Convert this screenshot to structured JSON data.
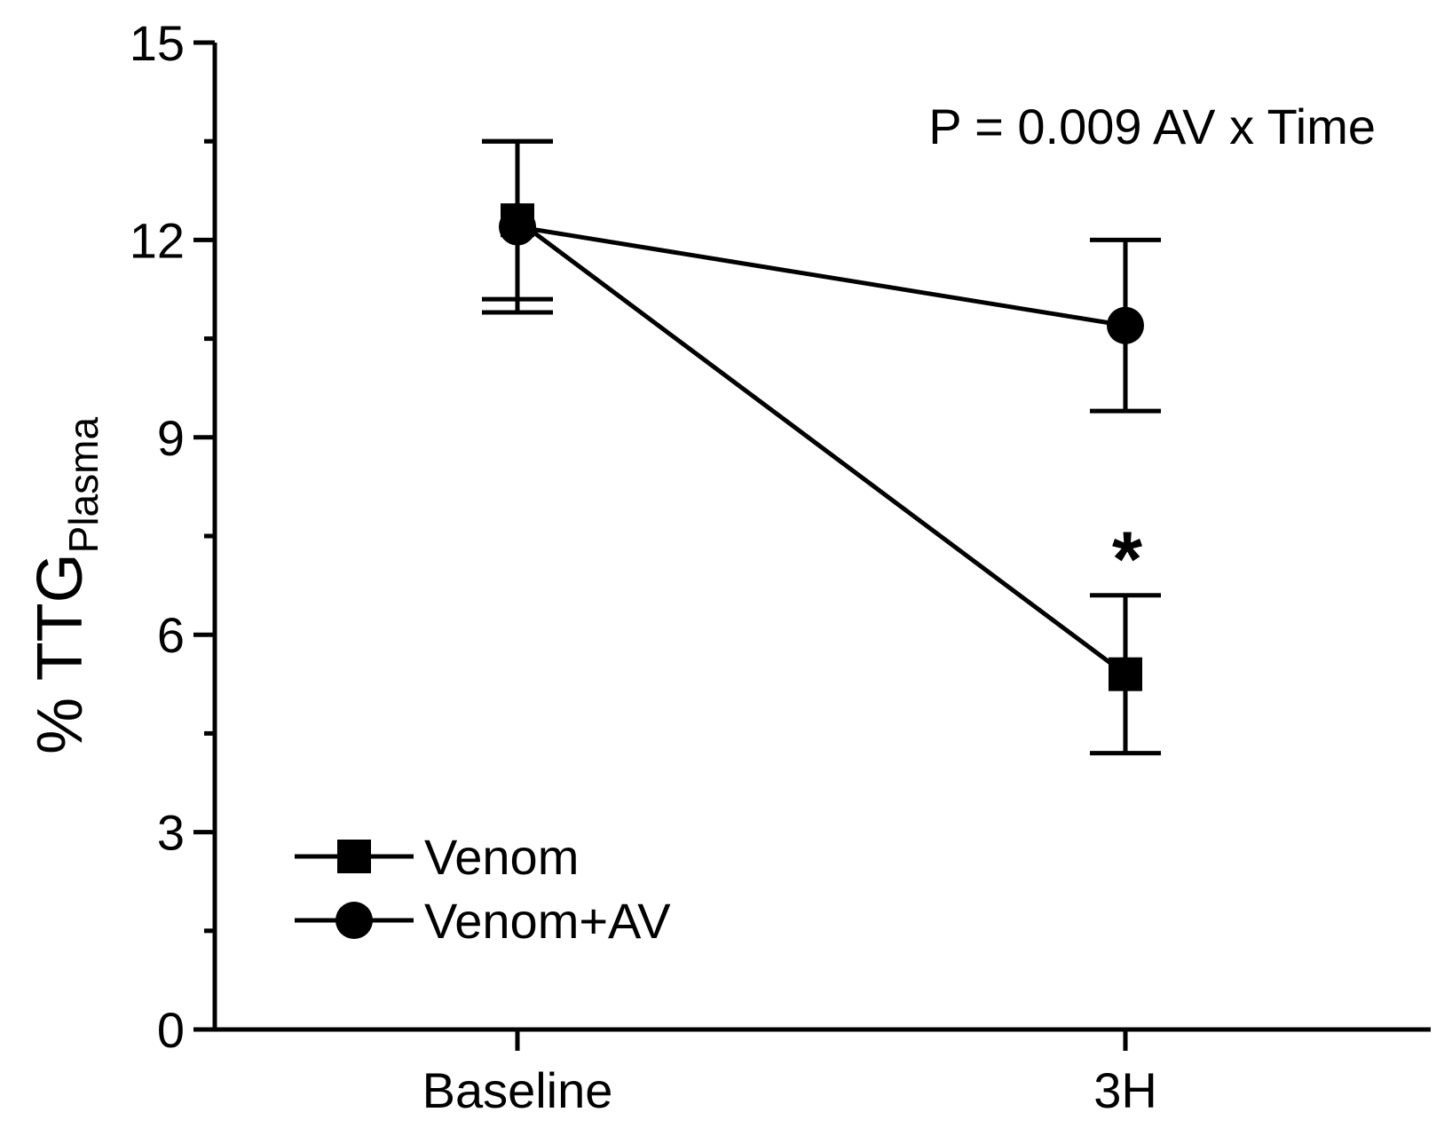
{
  "chart_data": {
    "type": "line",
    "title": "",
    "annotation": "P = 0.009 AV x Time",
    "significance_marker": "*",
    "ylabel": {
      "main": "% TTG",
      "subscript": "Plasma"
    },
    "xlabel": "",
    "categories": [
      "Baseline",
      "3H"
    ],
    "ylim": [
      0,
      15
    ],
    "yticks": [
      "0",
      "3",
      "6",
      "9",
      "12",
      "15"
    ],
    "ytick_values": [
      0,
      3,
      6,
      9,
      12,
      15
    ],
    "yminor_values": [
      1.5,
      4.5,
      7.5,
      10.5,
      13.5
    ],
    "grid": false,
    "legend_position": "bottom-left",
    "series": [
      {
        "name": "Venom",
        "marker": "square",
        "color": "#000000",
        "values": [
          12.3,
          5.4
        ],
        "err_low": [
          10.9,
          4.2
        ],
        "err_high": [
          13.5,
          6.6
        ]
      },
      {
        "name": "Venom+AV",
        "marker": "circle",
        "color": "#000000",
        "values": [
          12.2,
          10.7
        ],
        "err_low": [
          11.1,
          9.4
        ],
        "err_high": [
          13.5,
          12.0
        ]
      }
    ]
  }
}
